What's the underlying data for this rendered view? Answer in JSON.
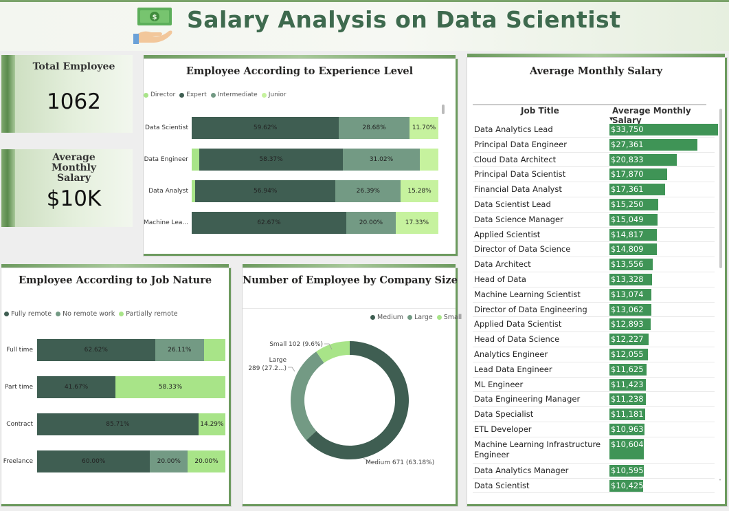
{
  "header": {
    "title": "Salary Analysis on Data Scientist"
  },
  "kpis": {
    "total_label": "Total Employee",
    "total_value": "1062",
    "avg_label": "Average Monthly Salary",
    "avg_value": "$10K"
  },
  "colors": {
    "dark": "#3f5e52",
    "mid": "#739a84",
    "light": "#a8e488",
    "bright": "#c6f29e",
    "accent": "#3f9456"
  },
  "chart_data": [
    {
      "type": "bar",
      "title": "Employee According to Experience Level",
      "orientation": "horizontal-stacked-100",
      "legend": [
        "Director",
        "Expert",
        "Intermediate",
        "Junior"
      ],
      "categories": [
        "Data Scientist",
        "Data Engineer",
        "Data Analyst",
        "Machine Lea..."
      ],
      "series": [
        {
          "name": "Director",
          "values": [
            0,
            3.0,
            1.4,
            0
          ]
        },
        {
          "name": "Expert",
          "values": [
            59.62,
            58.37,
            56.94,
            62.67
          ]
        },
        {
          "name": "Intermediate",
          "values": [
            28.68,
            31.02,
            26.39,
            20.0
          ]
        },
        {
          "name": "Junior",
          "values": [
            11.7,
            7.61,
            15.28,
            17.33
          ]
        }
      ],
      "data_labels": [
        [
          "",
          "59.62%",
          "28.68%",
          "11.70%"
        ],
        [
          "",
          "58.37%",
          "31.02%",
          ""
        ],
        [
          "",
          "56.94%",
          "26.39%",
          "15.28%"
        ],
        [
          "",
          "62.67%",
          "20.00%",
          "17.33%"
        ]
      ]
    },
    {
      "type": "bar",
      "title": "Employee According to Job Nature",
      "orientation": "horizontal-stacked-100",
      "legend": [
        "Fully remote",
        "No remote work",
        "Partially remote"
      ],
      "categories": [
        "Full time",
        "Part time",
        "Contract",
        "Freelance"
      ],
      "series": [
        {
          "name": "Fully remote",
          "values": [
            62.62,
            41.67,
            85.71,
            60.0
          ]
        },
        {
          "name": "No remote work",
          "values": [
            26.11,
            0,
            0,
            20.0
          ]
        },
        {
          "name": "Partially remote",
          "values": [
            11.27,
            58.33,
            14.29,
            20.0
          ]
        }
      ],
      "data_labels": [
        [
          "62.62%",
          "26.11%",
          ""
        ],
        [
          "41.67%",
          "",
          "58.33%"
        ],
        [
          "85.71%",
          "",
          "14.29%"
        ],
        [
          "60.00%",
          "20.00%",
          "20.00%"
        ]
      ]
    },
    {
      "type": "pie",
      "title": "Number of Employee by Company Size",
      "legend": [
        "Medium",
        "Large",
        "Small"
      ],
      "slices": [
        {
          "name": "Medium",
          "value": 671,
          "label": "Medium 671 (63.18%)"
        },
        {
          "name": "Large",
          "value": 289,
          "label_line1": "Large",
          "label_line2": "289 (27.2...)"
        },
        {
          "name": "Small",
          "value": 102,
          "label": "Small 102 (9.6%)"
        }
      ]
    },
    {
      "type": "table",
      "title": "Average Monthly Salary",
      "columns": [
        "Job Title",
        "Average Monthly Salary"
      ],
      "max": 33750,
      "rows": [
        {
          "title": "Data Analytics Lead",
          "value": 33750,
          "label": "$33,750"
        },
        {
          "title": "Principal Data Engineer",
          "value": 27361,
          "label": "$27,361"
        },
        {
          "title": "Cloud Data Architect",
          "value": 20833,
          "label": "$20,833"
        },
        {
          "title": "Principal Data Scientist",
          "value": 17870,
          "label": "$17,870"
        },
        {
          "title": "Financial Data Analyst",
          "value": 17361,
          "label": "$17,361"
        },
        {
          "title": "Data Scientist Lead",
          "value": 15250,
          "label": "$15,250"
        },
        {
          "title": "Data Science Manager",
          "value": 15049,
          "label": "$15,049"
        },
        {
          "title": "Applied Scientist",
          "value": 14817,
          "label": "$14,817"
        },
        {
          "title": "Director of Data Science",
          "value": 14809,
          "label": "$14,809"
        },
        {
          "title": "Data Architect",
          "value": 13556,
          "label": "$13,556"
        },
        {
          "title": "Head of Data",
          "value": 13328,
          "label": "$13,328"
        },
        {
          "title": "Machine Learning Scientist",
          "value": 13074,
          "label": "$13,074"
        },
        {
          "title": "Director of Data Engineering",
          "value": 13062,
          "label": "$13,062"
        },
        {
          "title": "Applied Data Scientist",
          "value": 12893,
          "label": "$12,893"
        },
        {
          "title": "Head of Data Science",
          "value": 12227,
          "label": "$12,227"
        },
        {
          "title": "Analytics Engineer",
          "value": 12055,
          "label": "$12,055"
        },
        {
          "title": "Lead Data Engineer",
          "value": 11625,
          "label": "$11,625"
        },
        {
          "title": "ML Engineer",
          "value": 11423,
          "label": "$11,423"
        },
        {
          "title": "Data Engineering Manager",
          "value": 11238,
          "label": "$11,238"
        },
        {
          "title": "Data Specialist",
          "value": 11181,
          "label": "$11,181"
        },
        {
          "title": "ETL Developer",
          "value": 10963,
          "label": "$10,963"
        },
        {
          "title": "Machine Learning Infrastructure Engineer",
          "value": 10604,
          "label": "$10,604",
          "tall": true
        },
        {
          "title": "Data Analytics Manager",
          "value": 10595,
          "label": "$10,595"
        },
        {
          "title": "Data Scientist",
          "value": 10425,
          "label": "$10,425"
        }
      ]
    }
  ]
}
